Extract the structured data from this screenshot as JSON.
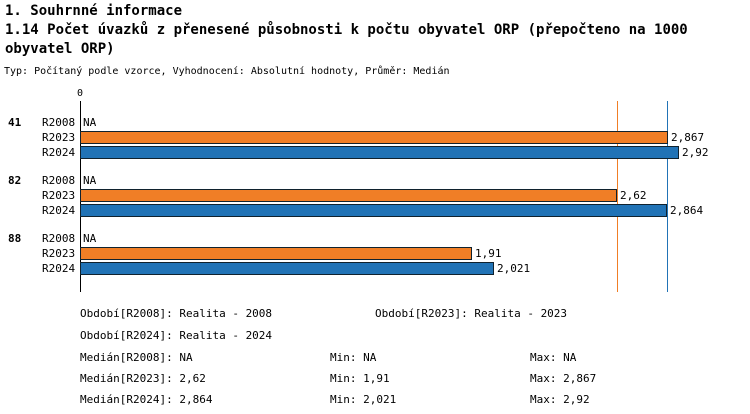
{
  "header": {
    "title1": "1. Souhrnné informace",
    "title2": "1.14 Počet úvazků z přenesené působnosti k počtu obyvatel ORP (přepočteno na 1000 obyvatel ORP)",
    "subtitle": "Typ: Počítaný podle vzorce, Vyhodnocení: Absolutní hodnoty, Průměr: Medián"
  },
  "chart_data": {
    "type": "bar",
    "orientation": "horizontal",
    "title": "1.14 Počet úvazků z přenesené působnosti k počtu obyvatel ORP (přepočteno na 1000 obyvatel ORP)",
    "x_axis": {
      "zero_tick": "0",
      "xlim": [
        0,
        3.17
      ]
    },
    "categories": [
      "41",
      "82",
      "88"
    ],
    "series_colors": {
      "R2023": "#F07E26",
      "R2024": "#2173B6"
    },
    "groups": [
      {
        "label": "41",
        "rows": [
          {
            "series": "R2008",
            "value": null,
            "display": "NA"
          },
          {
            "series": "R2023",
            "value": 2.867,
            "display": "2,867"
          },
          {
            "series": "R2024",
            "value": 2.92,
            "display": "2,92"
          }
        ]
      },
      {
        "label": "82",
        "rows": [
          {
            "series": "R2008",
            "value": null,
            "display": "NA"
          },
          {
            "series": "R2023",
            "value": 2.62,
            "display": "2,62"
          },
          {
            "series": "R2024",
            "value": 2.864,
            "display": "2,864"
          }
        ]
      },
      {
        "label": "88",
        "rows": [
          {
            "series": "R2008",
            "value": null,
            "display": "NA"
          },
          {
            "series": "R2023",
            "value": 1.91,
            "display": "1,91"
          },
          {
            "series": "R2024",
            "value": 2.021,
            "display": "2,021"
          }
        ]
      }
    ],
    "reference_lines": [
      {
        "name": "median-line-r2023",
        "value": 2.62,
        "color": "#F07E26"
      },
      {
        "name": "median-line-r2024",
        "value": 2.864,
        "color": "#2173B6"
      }
    ]
  },
  "footer": {
    "period_labels": [
      {
        "text": "Období[R2008]: Realita - 2008"
      },
      {
        "text": "Období[R2023]: Realita - 2023"
      },
      {
        "text": "Období[R2024]: Realita - 2024"
      }
    ],
    "stat_rows": [
      {
        "median": "Medián[R2008]: NA",
        "min": "Min: NA",
        "max": "Max: NA"
      },
      {
        "median": "Medián[R2023]: 2,62",
        "min": "Min: 1,91",
        "max": "Max: 2,867"
      },
      {
        "median": "Medián[R2024]: 2,864",
        "min": "Min: 2,021",
        "max": "Max: 2,92"
      }
    ]
  }
}
